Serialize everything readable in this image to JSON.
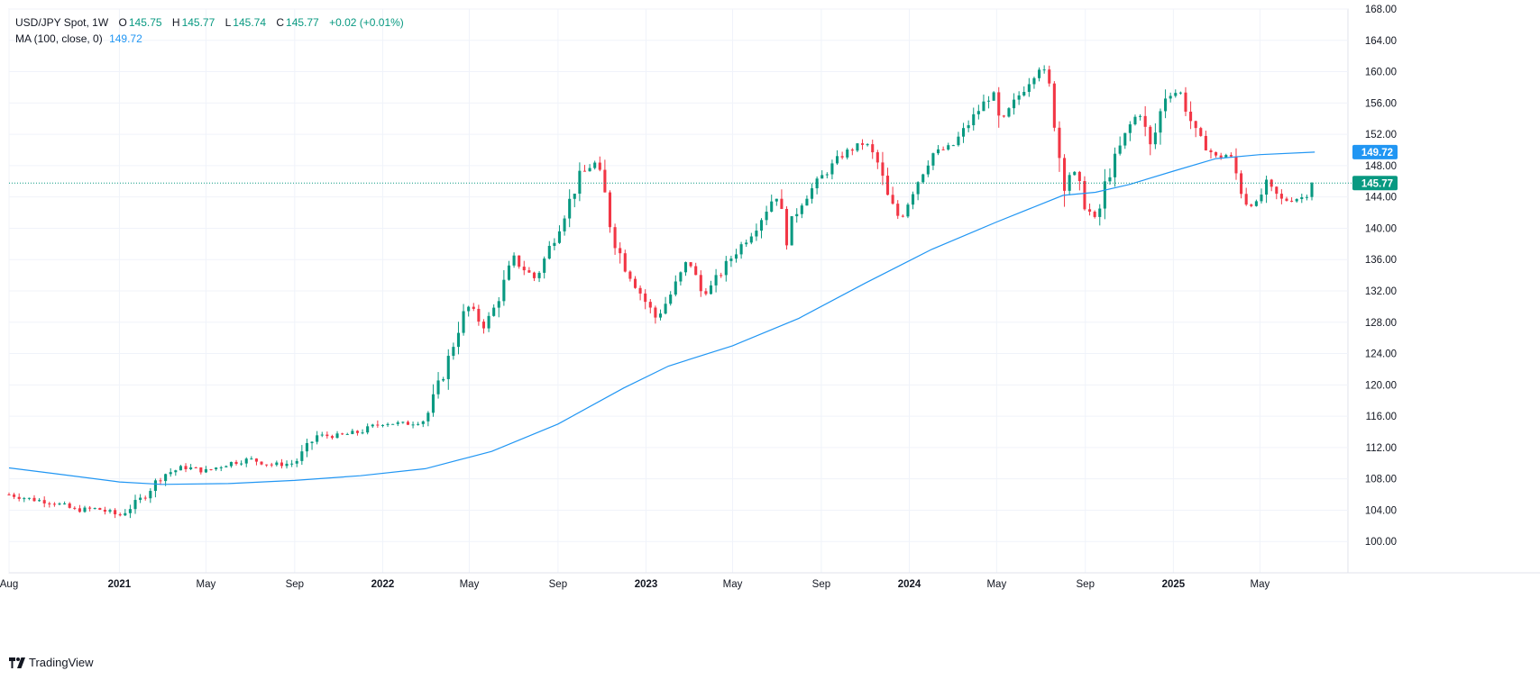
{
  "legend": {
    "symbol": "USD/JPY Spot, 1W",
    "open_label": "O",
    "open": "145.75",
    "high_label": "H",
    "high": "145.77",
    "low_label": "L",
    "low": "145.74",
    "close_label": "C",
    "close": "145.77",
    "change": "+0.02 (+0.01%)",
    "ma_label": "MA (100, close, 0)",
    "ma_value": "149.72"
  },
  "brand": {
    "name": "TradingView"
  },
  "colors": {
    "up": "#089981",
    "down": "#f23645",
    "ma": "#2196f3",
    "grid": "#f0f3fa",
    "price_line": "#089981"
  },
  "chart_data": {
    "type": "candlestick",
    "title": "USD/JPY Spot, 1W",
    "ylim": [
      96,
      168
    ],
    "y_ticks": [
      100,
      104,
      108,
      112,
      116,
      120,
      124,
      128,
      132,
      136,
      140,
      144,
      148,
      152,
      156,
      160,
      164,
      168
    ],
    "x_ticks": [
      {
        "label": "Aug",
        "date": "2020-08-01",
        "year": false
      },
      {
        "label": "2021",
        "date": "2021-01-01",
        "year": true
      },
      {
        "label": "May",
        "date": "2021-05-01",
        "year": false
      },
      {
        "label": "Sep",
        "date": "2021-09-01",
        "year": false
      },
      {
        "label": "2022",
        "date": "2022-01-01",
        "year": true
      },
      {
        "label": "May",
        "date": "2022-05-01",
        "year": false
      },
      {
        "label": "Sep",
        "date": "2022-09-01",
        "year": false
      },
      {
        "label": "2023",
        "date": "2023-01-01",
        "year": true
      },
      {
        "label": "May",
        "date": "2023-05-01",
        "year": false
      },
      {
        "label": "Sep",
        "date": "2023-09-01",
        "year": false
      },
      {
        "label": "2024",
        "date": "2024-01-01",
        "year": true
      },
      {
        "label": "May",
        "date": "2024-05-01",
        "year": false
      },
      {
        "label": "Sep",
        "date": "2024-09-01",
        "year": false
      },
      {
        "label": "2025",
        "date": "2025-01-01",
        "year": true
      },
      {
        "label": "May",
        "date": "2025-05-01",
        "year": false
      }
    ],
    "date_range": [
      "2020-08-01",
      "2025-08-31"
    ],
    "close_anchors": [
      {
        "date": "2020-08-01",
        "close": 106.0
      },
      {
        "date": "2020-09-01",
        "close": 105.4
      },
      {
        "date": "2020-10-01",
        "close": 105.0
      },
      {
        "date": "2020-11-01",
        "close": 104.0
      },
      {
        "date": "2020-12-01",
        "close": 104.2
      },
      {
        "date": "2021-01-01",
        "close": 103.3
      },
      {
        "date": "2021-02-01",
        "close": 105.5
      },
      {
        "date": "2021-03-01",
        "close": 108.5
      },
      {
        "date": "2021-04-01",
        "close": 109.5
      },
      {
        "date": "2021-05-01",
        "close": 109.0
      },
      {
        "date": "2021-06-01",
        "close": 110.0
      },
      {
        "date": "2021-07-01",
        "close": 110.5
      },
      {
        "date": "2021-08-01",
        "close": 109.8
      },
      {
        "date": "2021-09-01",
        "close": 110.0
      },
      {
        "date": "2021-10-01",
        "close": 113.5
      },
      {
        "date": "2021-11-01",
        "close": 113.5
      },
      {
        "date": "2021-12-01",
        "close": 114.0
      },
      {
        "date": "2022-01-01",
        "close": 115.2
      },
      {
        "date": "2022-02-01",
        "close": 115.0
      },
      {
        "date": "2022-03-01",
        "close": 115.5
      },
      {
        "date": "2022-03-20",
        "close": 120.0
      },
      {
        "date": "2022-04-01",
        "close": 123.0
      },
      {
        "date": "2022-04-20",
        "close": 128.5
      },
      {
        "date": "2022-05-01",
        "close": 130.0
      },
      {
        "date": "2022-05-20",
        "close": 127.5
      },
      {
        "date": "2022-06-01",
        "close": 129.0
      },
      {
        "date": "2022-07-01",
        "close": 136.0
      },
      {
        "date": "2022-08-01",
        "close": 133.5
      },
      {
        "date": "2022-09-01",
        "close": 140.0
      },
      {
        "date": "2022-10-01",
        "close": 146.5
      },
      {
        "date": "2022-10-21",
        "close": 148.5
      },
      {
        "date": "2022-11-01",
        "close": 146.0
      },
      {
        "date": "2022-11-15",
        "close": 139.5
      },
      {
        "date": "2022-12-01",
        "close": 135.5
      },
      {
        "date": "2023-01-01",
        "close": 130.5
      },
      {
        "date": "2023-01-15",
        "close": 128.5
      },
      {
        "date": "2023-02-01",
        "close": 131.0
      },
      {
        "date": "2023-03-01",
        "close": 136.0
      },
      {
        "date": "2023-03-20",
        "close": 131.5
      },
      {
        "date": "2023-04-01",
        "close": 132.5
      },
      {
        "date": "2023-05-01",
        "close": 136.5
      },
      {
        "date": "2023-06-01",
        "close": 140.0
      },
      {
        "date": "2023-06-30",
        "close": 144.5
      },
      {
        "date": "2023-07-15",
        "close": 139.0
      },
      {
        "date": "2023-08-01",
        "close": 143.0
      },
      {
        "date": "2023-09-01",
        "close": 146.5
      },
      {
        "date": "2023-10-01",
        "close": 149.5
      },
      {
        "date": "2023-11-01",
        "close": 151.0
      },
      {
        "date": "2023-11-20",
        "close": 148.0
      },
      {
        "date": "2023-12-01",
        "close": 144.0
      },
      {
        "date": "2023-12-20",
        "close": 141.0
      },
      {
        "date": "2024-01-01",
        "close": 144.0
      },
      {
        "date": "2024-02-01",
        "close": 149.5
      },
      {
        "date": "2024-03-01",
        "close": 150.5
      },
      {
        "date": "2024-04-01",
        "close": 154.5
      },
      {
        "date": "2024-04-26",
        "close": 157.5
      },
      {
        "date": "2024-05-05",
        "close": 153.0
      },
      {
        "date": "2024-06-01",
        "close": 157.0
      },
      {
        "date": "2024-07-01",
        "close": 161.0
      },
      {
        "date": "2024-07-15",
        "close": 157.5
      },
      {
        "date": "2024-08-01",
        "close": 146.0
      },
      {
        "date": "2024-08-15",
        "close": 147.5
      },
      {
        "date": "2024-09-01",
        "close": 143.0
      },
      {
        "date": "2024-09-16",
        "close": 140.5
      },
      {
        "date": "2024-10-01",
        "close": 146.5
      },
      {
        "date": "2024-11-01",
        "close": 153.0
      },
      {
        "date": "2024-11-15",
        "close": 155.0
      },
      {
        "date": "2024-12-01",
        "close": 150.0
      },
      {
        "date": "2024-12-20",
        "close": 157.0
      },
      {
        "date": "2025-01-10",
        "close": 157.5
      },
      {
        "date": "2025-02-01",
        "close": 152.0
      },
      {
        "date": "2025-03-01",
        "close": 149.0
      },
      {
        "date": "2025-03-20",
        "close": 149.5
      },
      {
        "date": "2025-04-10",
        "close": 143.5
      },
      {
        "date": "2025-04-25",
        "close": 143.0
      },
      {
        "date": "2025-05-10",
        "close": 145.5
      },
      {
        "date": "2025-06-01",
        "close": 143.5
      },
      {
        "date": "2025-07-01",
        "close": 144.0
      },
      {
        "date": "2025-07-16",
        "close": 145.77
      }
    ],
    "series": [
      {
        "name": "MA (100, close, 0)",
        "type": "line",
        "points": [
          {
            "date": "2020-08-01",
            "value": 109.4
          },
          {
            "date": "2020-10-01",
            "value": 108.7
          },
          {
            "date": "2021-01-01",
            "value": 107.6
          },
          {
            "date": "2021-03-01",
            "value": 107.3
          },
          {
            "date": "2021-06-01",
            "value": 107.4
          },
          {
            "date": "2021-09-01",
            "value": 107.8
          },
          {
            "date": "2021-12-01",
            "value": 108.4
          },
          {
            "date": "2022-03-01",
            "value": 109.3
          },
          {
            "date": "2022-06-01",
            "value": 111.5
          },
          {
            "date": "2022-09-01",
            "value": 115.0
          },
          {
            "date": "2022-12-01",
            "value": 119.6
          },
          {
            "date": "2023-02-01",
            "value": 122.4
          },
          {
            "date": "2023-05-01",
            "value": 125.0
          },
          {
            "date": "2023-08-01",
            "value": 128.5
          },
          {
            "date": "2023-11-01",
            "value": 133.0
          },
          {
            "date": "2024-02-01",
            "value": 137.3
          },
          {
            "date": "2024-05-01",
            "value": 140.8
          },
          {
            "date": "2024-08-01",
            "value": 144.2
          },
          {
            "date": "2024-09-15",
            "value": 144.6
          },
          {
            "date": "2024-11-01",
            "value": 145.6
          },
          {
            "date": "2025-01-01",
            "value": 147.3
          },
          {
            "date": "2025-03-01",
            "value": 148.9
          },
          {
            "date": "2025-05-01",
            "value": 149.4
          },
          {
            "date": "2025-07-16",
            "value": 149.72
          }
        ]
      }
    ],
    "last_price": 145.77,
    "ma_last": 149.72
  }
}
